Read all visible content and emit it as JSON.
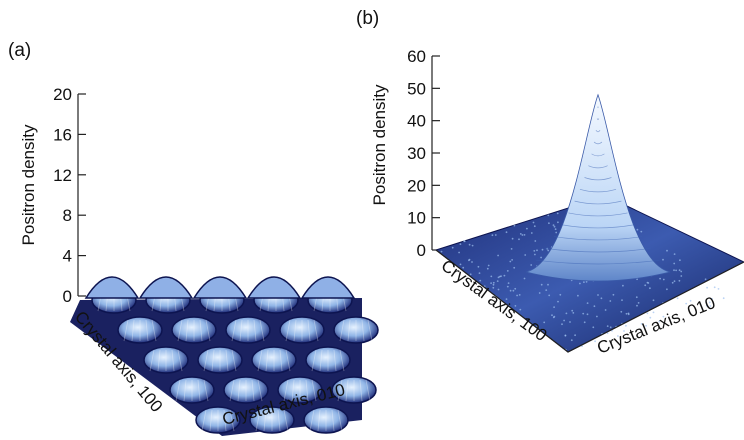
{
  "figure": {
    "panels": [
      {
        "label": "(a)",
        "zlabel": "Positron density",
        "xlabel": "Crystal axis, 100",
        "ylabel": "Crystal axis, 010"
      },
      {
        "label": "(b)",
        "zlabel": "Positron density",
        "xlabel": "Crystal axis, 100",
        "ylabel": "Crystal axis, 010"
      }
    ]
  },
  "colors": {
    "surface_light": "#cfe6ff",
    "surface_mid": "#6a8fd0",
    "surface_dark": "#0d1450"
  },
  "chart_data": [
    {
      "type": "surface",
      "title": "",
      "panel_label": "(a)",
      "zlabel": "Positron density",
      "xlabel": "Crystal axis, 100",
      "ylabel": "Crystal axis, 010",
      "zlim": [
        0,
        20
      ],
      "z_ticks": [
        "0",
        "4",
        "8",
        "12",
        "16",
        "20"
      ],
      "description_of_values": "periodic array of low bumps, peak density about 2.5, minima about 0",
      "peak_value": 2.5,
      "grid": false
    },
    {
      "type": "surface",
      "title": "",
      "panel_label": "(b)",
      "zlabel": "Positron density",
      "xlabel": "Crystal axis, 100",
      "ylabel": "Crystal axis, 010",
      "zlim": [
        0,
        60
      ],
      "z_ticks": [
        "0",
        "10",
        "20",
        "30",
        "40",
        "50",
        "60"
      ],
      "description_of_values": "single sharp central peak on a flat near-zero background",
      "peak_value": 48,
      "grid": false
    }
  ]
}
